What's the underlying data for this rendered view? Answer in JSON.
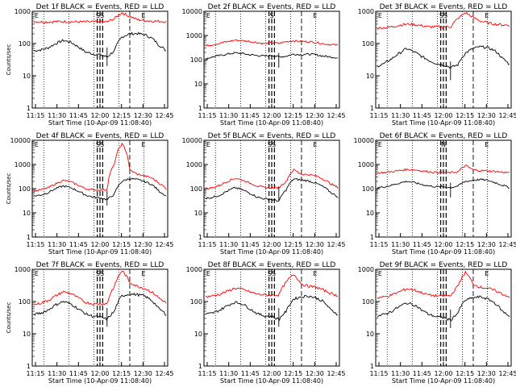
{
  "chart_data": [
    {
      "type": "line",
      "title": "Det 1f BLACK = Events, RED = LLD",
      "ylabel": "Counts/sec",
      "xlabel": "Start Time (10-Apr-09 11:08:40)",
      "yscale": "log",
      "ylim": [
        1,
        1000
      ],
      "yticks": [
        "1",
        "10",
        "100",
        "1000"
      ],
      "xticks": [
        "11:15",
        "11:30",
        "11:45",
        "12:00",
        "12:15",
        "12:30",
        "12:45"
      ],
      "annotations": [
        "E",
        "SS",
        "E"
      ],
      "series": [
        {
          "color": "#000000",
          "values": [
            60,
            64,
            74,
            100,
            125,
            110,
            80,
            55,
            48,
            45,
            38,
            60,
            160,
            200,
            205,
            190,
            150,
            90,
            60
          ]
        },
        {
          "color": "#ff0000",
          "values": [
            480,
            470,
            470,
            480,
            480,
            475,
            470,
            470,
            470,
            470,
            470,
            600,
            900,
            700,
            560,
            520,
            500,
            490,
            480
          ]
        }
      ]
    },
    {
      "type": "line",
      "title": "Det 2f BLACK = Events, RED = LLD",
      "ylabel": "",
      "xlabel": "Start Time (10-Apr-09 11:08:40)",
      "yscale": "log",
      "ylim": [
        1,
        10000
      ],
      "yticks": [
        "1",
        "10",
        "100",
        "1000",
        "10000"
      ],
      "xticks": [
        "11:15",
        "11:30",
        "11:45",
        "12:00",
        "12:15",
        "12:30",
        "12:45"
      ],
      "annotations": [
        "E",
        "S",
        "E"
      ],
      "series": [
        {
          "color": "#000000",
          "values": [
            110,
            130,
            150,
            170,
            190,
            180,
            160,
            150,
            140,
            150,
            130,
            140,
            170,
            160,
            170,
            160,
            140,
            130,
            120
          ]
        },
        {
          "color": "#ff0000",
          "values": [
            370,
            420,
            480,
            560,
            640,
            610,
            570,
            510,
            460,
            500,
            470,
            560,
            600,
            560,
            560,
            520,
            460,
            420,
            400
          ]
        }
      ]
    },
    {
      "type": "line",
      "title": "Det 3f BLACK = Events, RED = LLD",
      "ylabel": "",
      "xlabel": "Start Time (10-Apr-09 11:08:40)",
      "yscale": "log",
      "ylim": [
        1,
        1000
      ],
      "yticks": [
        "1",
        "10",
        "100",
        "1000"
      ],
      "xticks": [
        "11:15",
        "11:30",
        "11:45",
        "12:00",
        "12:15",
        "12:30",
        "12:45"
      ],
      "annotations": [
        "E",
        "SS",
        "E"
      ],
      "series": [
        {
          "color": "#000000",
          "values": [
            20,
            24,
            34,
            50,
            70,
            55,
            40,
            30,
            24,
            22,
            18,
            22,
            50,
            70,
            80,
            75,
            60,
            35,
            22
          ]
        },
        {
          "color": "#ff0000",
          "values": [
            300,
            310,
            330,
            370,
            400,
            390,
            360,
            330,
            330,
            330,
            330,
            600,
            900,
            650,
            500,
            440,
            400,
            380,
            370
          ]
        }
      ]
    },
    {
      "type": "line",
      "title": "Det 4f BLACK = Events, RED = LLD",
      "ylabel": "Counts/sec",
      "xlabel": "Start Time (10-Apr-09 11:08:40)",
      "yscale": "log",
      "ylim": [
        1,
        10000
      ],
      "yticks": [
        "1",
        "10",
        "100",
        "1000",
        "10000"
      ],
      "xticks": [
        "11:15",
        "11:30",
        "11:45",
        "12:00",
        "12:15",
        "12:30",
        "12:45"
      ],
      "annotations": [
        "E",
        "SS",
        "E"
      ],
      "series": [
        {
          "color": "#000000",
          "values": [
            50,
            55,
            70,
            100,
            130,
            110,
            80,
            55,
            45,
            42,
            35,
            60,
            200,
            260,
            240,
            200,
            150,
            80,
            50
          ]
        },
        {
          "color": "#ff0000",
          "values": [
            80,
            90,
            110,
            160,
            220,
            190,
            140,
            100,
            90,
            90,
            90,
            1000,
            7000,
            600,
            400,
            340,
            280,
            170,
            100
          ]
        }
      ]
    },
    {
      "type": "line",
      "title": "Det 5f BLACK = Events, RED = LLD",
      "ylabel": "",
      "xlabel": "Start Time (10-Apr-09 11:08:40)",
      "yscale": "log",
      "ylim": [
        1,
        10000
      ],
      "yticks": [
        "1",
        "10",
        "100",
        "1000",
        "10000"
      ],
      "xticks": [
        "11:15",
        "11:30",
        "11:45",
        "12:00",
        "12:15",
        "12:30",
        "12:45"
      ],
      "annotations": [
        "E",
        "SS",
        "E"
      ],
      "series": [
        {
          "color": "#000000",
          "values": [
            40,
            44,
            55,
            80,
            110,
            90,
            65,
            45,
            38,
            36,
            30,
            90,
            250,
            230,
            210,
            170,
            120,
            70,
            45
          ]
        },
        {
          "color": "#ff0000",
          "values": [
            100,
            110,
            140,
            200,
            270,
            230,
            170,
            130,
            110,
            110,
            110,
            200,
            600,
            400,
            380,
            340,
            250,
            160,
            110
          ]
        }
      ]
    },
    {
      "type": "line",
      "title": "Det 6f BLACK = Events, RED = LLD",
      "ylabel": "",
      "xlabel": "Start Time (10-Apr-09 11:08:40)",
      "yscale": "log",
      "ylim": [
        1,
        10000
      ],
      "yticks": [
        "1",
        "10",
        "100",
        "1000",
        "10000"
      ],
      "xticks": [
        "11:15",
        "11:30",
        "11:45",
        "12:00",
        "12:15",
        "12:30",
        "12:45"
      ],
      "annotations": [
        "E",
        "N",
        "E"
      ],
      "series": [
        {
          "color": "#000000",
          "values": [
            110,
            120,
            140,
            170,
            200,
            180,
            150,
            130,
            120,
            120,
            110,
            130,
            200,
            220,
            240,
            220,
            180,
            140,
            110
          ]
        },
        {
          "color": "#ff0000",
          "values": [
            450,
            470,
            500,
            560,
            620,
            600,
            550,
            500,
            470,
            470,
            460,
            500,
            900,
            600,
            560,
            540,
            520,
            480,
            460
          ]
        }
      ]
    },
    {
      "type": "line",
      "title": "Det 7f BLACK = Events, RED = LLD",
      "ylabel": "Counts/sec",
      "xlabel": "Start Time (10-Apr-09 11:08:40)",
      "yscale": "log",
      "ylim": [
        1,
        1000
      ],
      "yticks": [
        "1",
        "10",
        "100",
        "1000"
      ],
      "xticks": [
        "11:15",
        "11:30",
        "11:45",
        "12:00",
        "12:15",
        "12:30",
        "12:45"
      ],
      "annotations": [
        "E",
        "SS",
        "E"
      ],
      "series": [
        {
          "color": "#000000",
          "values": [
            40,
            44,
            55,
            80,
            100,
            85,
            60,
            42,
            35,
            33,
            28,
            50,
            150,
            170,
            165,
            150,
            110,
            60,
            40
          ]
        },
        {
          "color": "#ff0000",
          "values": [
            80,
            90,
            110,
            150,
            200,
            180,
            130,
            95,
            85,
            85,
            85,
            300,
            900,
            400,
            300,
            260,
            200,
            130,
            90
          ]
        }
      ]
    },
    {
      "type": "line",
      "title": "Det 8f BLACK = Events, RED = LLD",
      "ylabel": "",
      "xlabel": "Start Time (10-Apr-09 11:08:40)",
      "yscale": "log",
      "ylim": [
        1,
        1000
      ],
      "yticks": [
        "1",
        "10",
        "100",
        "1000"
      ],
      "xticks": [
        "11:15",
        "11:30",
        "11:45",
        "12:00",
        "12:15",
        "12:30",
        "12:45"
      ],
      "annotations": [
        "E",
        "SS",
        "E"
      ],
      "series": [
        {
          "color": "#000000",
          "values": [
            40,
            44,
            55,
            75,
            95,
            85,
            60,
            42,
            36,
            34,
            28,
            50,
            120,
            140,
            150,
            130,
            100,
            55,
            40
          ]
        },
        {
          "color": "#ff0000",
          "values": [
            140,
            150,
            170,
            210,
            260,
            240,
            200,
            170,
            160,
            160,
            160,
            400,
            700,
            350,
            300,
            280,
            230,
            180,
            150
          ]
        }
      ]
    },
    {
      "type": "line",
      "title": "Det 9f BLACK = Events, RED = LLD",
      "ylabel": "",
      "xlabel": "Start Time (10-Apr-09 11:08:40)",
      "yscale": "log",
      "ylim": [
        1,
        1000
      ],
      "yticks": [
        "1",
        "10",
        "100",
        "1000"
      ],
      "xticks": [
        "11:15",
        "11:30",
        "11:45",
        "12:00",
        "12:15",
        "12:30",
        "12:45"
      ],
      "annotations": [
        "E",
        "E"
      ],
      "series": [
        {
          "color": "#000000",
          "values": [
            35,
            40,
            50,
            70,
            90,
            80,
            55,
            40,
            34,
            32,
            26,
            45,
            110,
            130,
            140,
            120,
            90,
            50,
            35
          ]
        },
        {
          "color": "#ff0000",
          "values": [
            130,
            140,
            160,
            200,
            250,
            230,
            190,
            160,
            150,
            150,
            150,
            300,
            800,
            350,
            280,
            260,
            220,
            170,
            140
          ]
        }
      ]
    }
  ]
}
